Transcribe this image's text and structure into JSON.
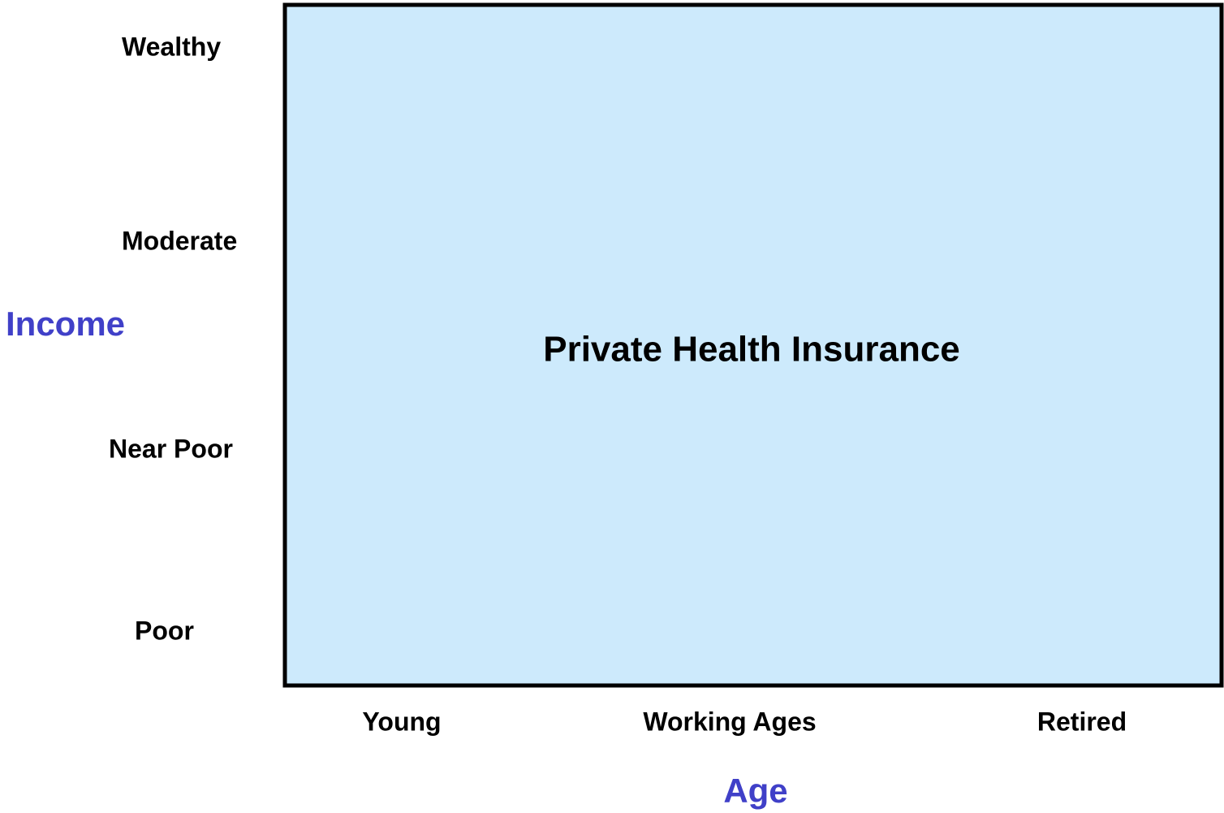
{
  "y_axis": {
    "title": "Income",
    "labels": [
      "Wealthy",
      "Moderate",
      "Near Poor",
      "Poor"
    ]
  },
  "x_axis": {
    "title": "Age",
    "labels": [
      "Young",
      "Working Ages",
      "Retired"
    ]
  },
  "region": {
    "label": "Private Health Insurance"
  }
}
